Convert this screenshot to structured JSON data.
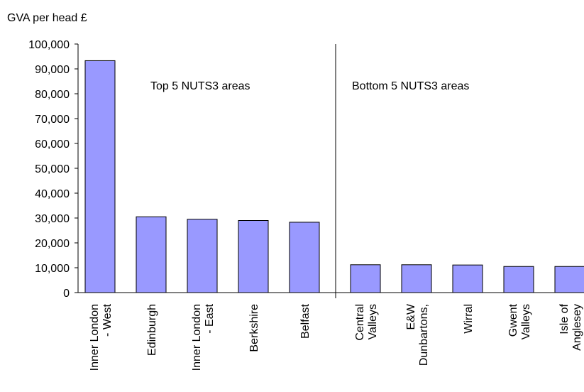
{
  "chart_data": {
    "type": "bar",
    "y_label": "GVA per head £",
    "annotations": [
      "Top 5 NUTS3 areas",
      "Bottom 5 NUTS3 areas"
    ],
    "categories": [
      [
        "Inner London",
        "- West"
      ],
      [
        "Edinburgh"
      ],
      [
        "Inner London",
        "- East"
      ],
      [
        "Berkshire"
      ],
      [
        "Belfast"
      ],
      [
        "Central",
        "Valleys"
      ],
      [
        "E&W",
        "Dunbartons,"
      ],
      [
        "Wirral"
      ],
      [
        "Gwent",
        "Valleys"
      ],
      [
        "Isle of",
        "Anglesey"
      ]
    ],
    "values": [
      93300,
      30500,
      29500,
      29000,
      28300,
      11200,
      11200,
      11100,
      10500,
      10500
    ],
    "color": "#9999ff",
    "ylim": [
      0,
      100000
    ],
    "yticks": [
      0,
      {
        "value": 10000,
        "label": "10,000"
      },
      {
        "value": 20000,
        "label": "20,000"
      },
      {
        "value": 30000,
        "label": "30,000"
      },
      {
        "value": 40000,
        "label": "40,000"
      },
      {
        "value": 50000,
        "label": "50,000"
      },
      {
        "value": 60000,
        "label": "60,000"
      },
      {
        "value": 70000,
        "label": "70,000"
      },
      {
        "value": 80000,
        "label": "80,000"
      },
      {
        "value": 90000,
        "label": "90,000"
      },
      {
        "value": 100000,
        "label": "100,000"
      }
    ]
  }
}
